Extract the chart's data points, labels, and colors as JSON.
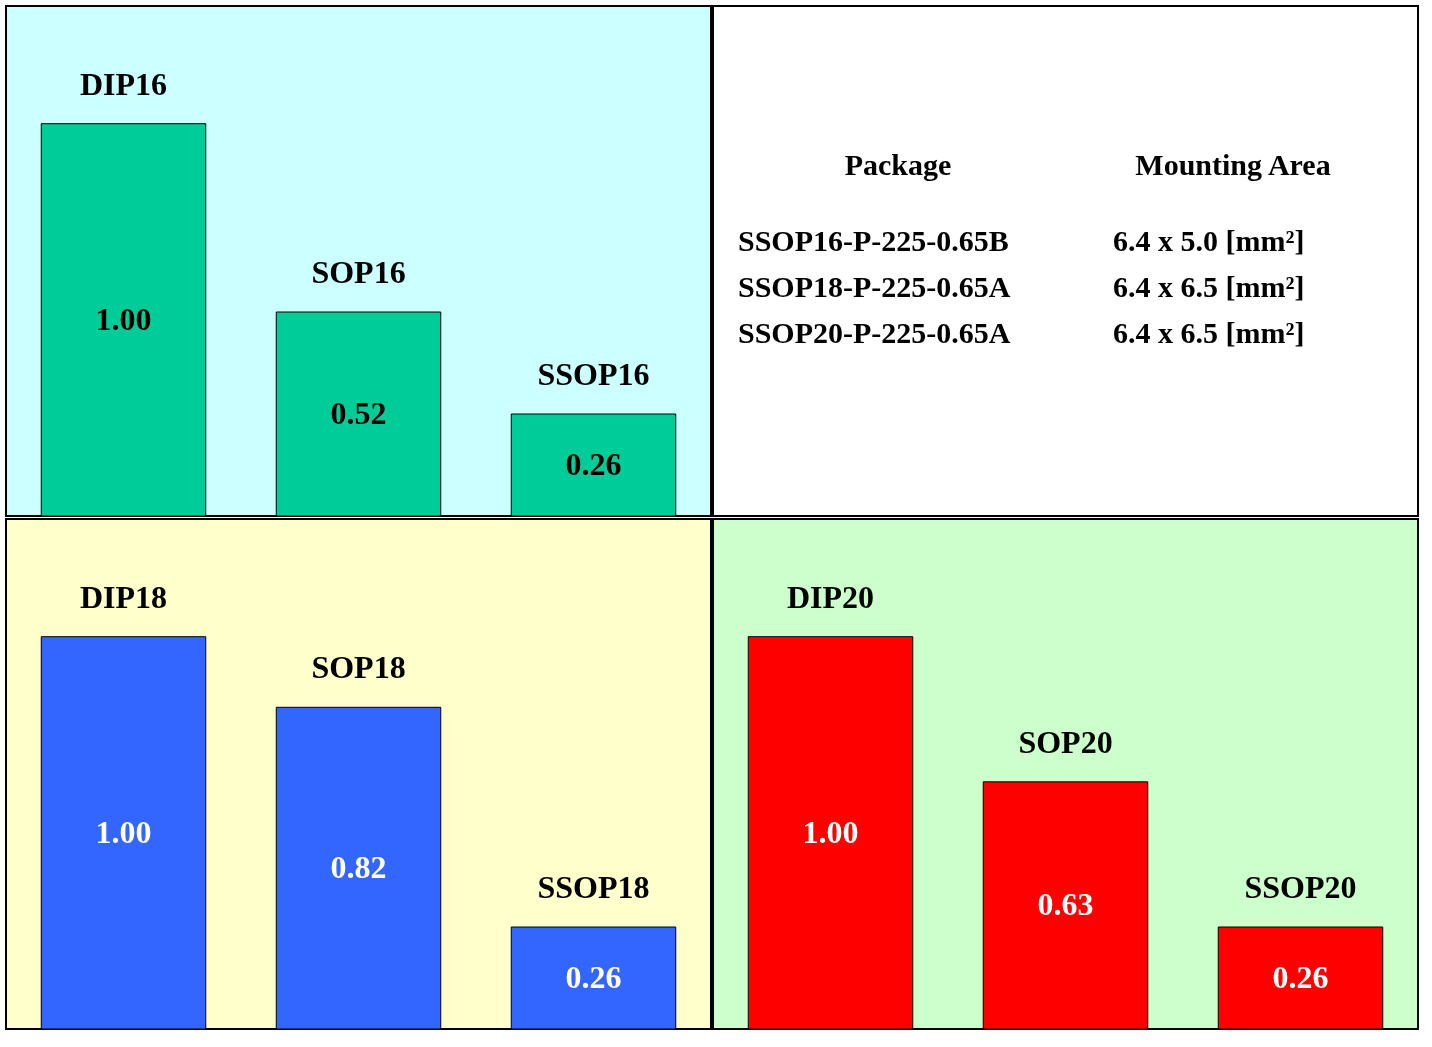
{
  "chart_data": [
    {
      "type": "bar",
      "categories": [
        "DIP16",
        "SOP16",
        "SSOP16"
      ],
      "values": [
        1.0,
        0.52,
        0.26
      ],
      "color": "#00cc99",
      "value_labels": [
        "1.00",
        "0.52",
        "0.26"
      ]
    },
    {
      "type": "other",
      "annotations": [
        "Package",
        "Mounting Area",
        "SSOP16-P-225-0.65B",
        "6.4 x 5.0 [mm²]",
        "SSOP18-P-225-0.65A",
        "6.4 x 6.5 [mm²]",
        "SSOP20-P-225-0.65A",
        "6.4 x 6.5 [mm²]"
      ]
    },
    {
      "type": "bar",
      "categories": [
        "DIP18",
        "SOP18",
        "SSOP18"
      ],
      "values": [
        1.0,
        0.82,
        0.26
      ],
      "color": "#3366ff",
      "value_labels": [
        "1.00",
        "0.82",
        "0.26"
      ]
    },
    {
      "type": "bar",
      "categories": [
        "DIP20",
        "SOP20",
        "SSOP20"
      ],
      "values": [
        1.0,
        0.63,
        0.26
      ],
      "color": "#ff0000",
      "value_labels": [
        "1.00",
        "0.63",
        "0.26"
      ]
    }
  ]
}
